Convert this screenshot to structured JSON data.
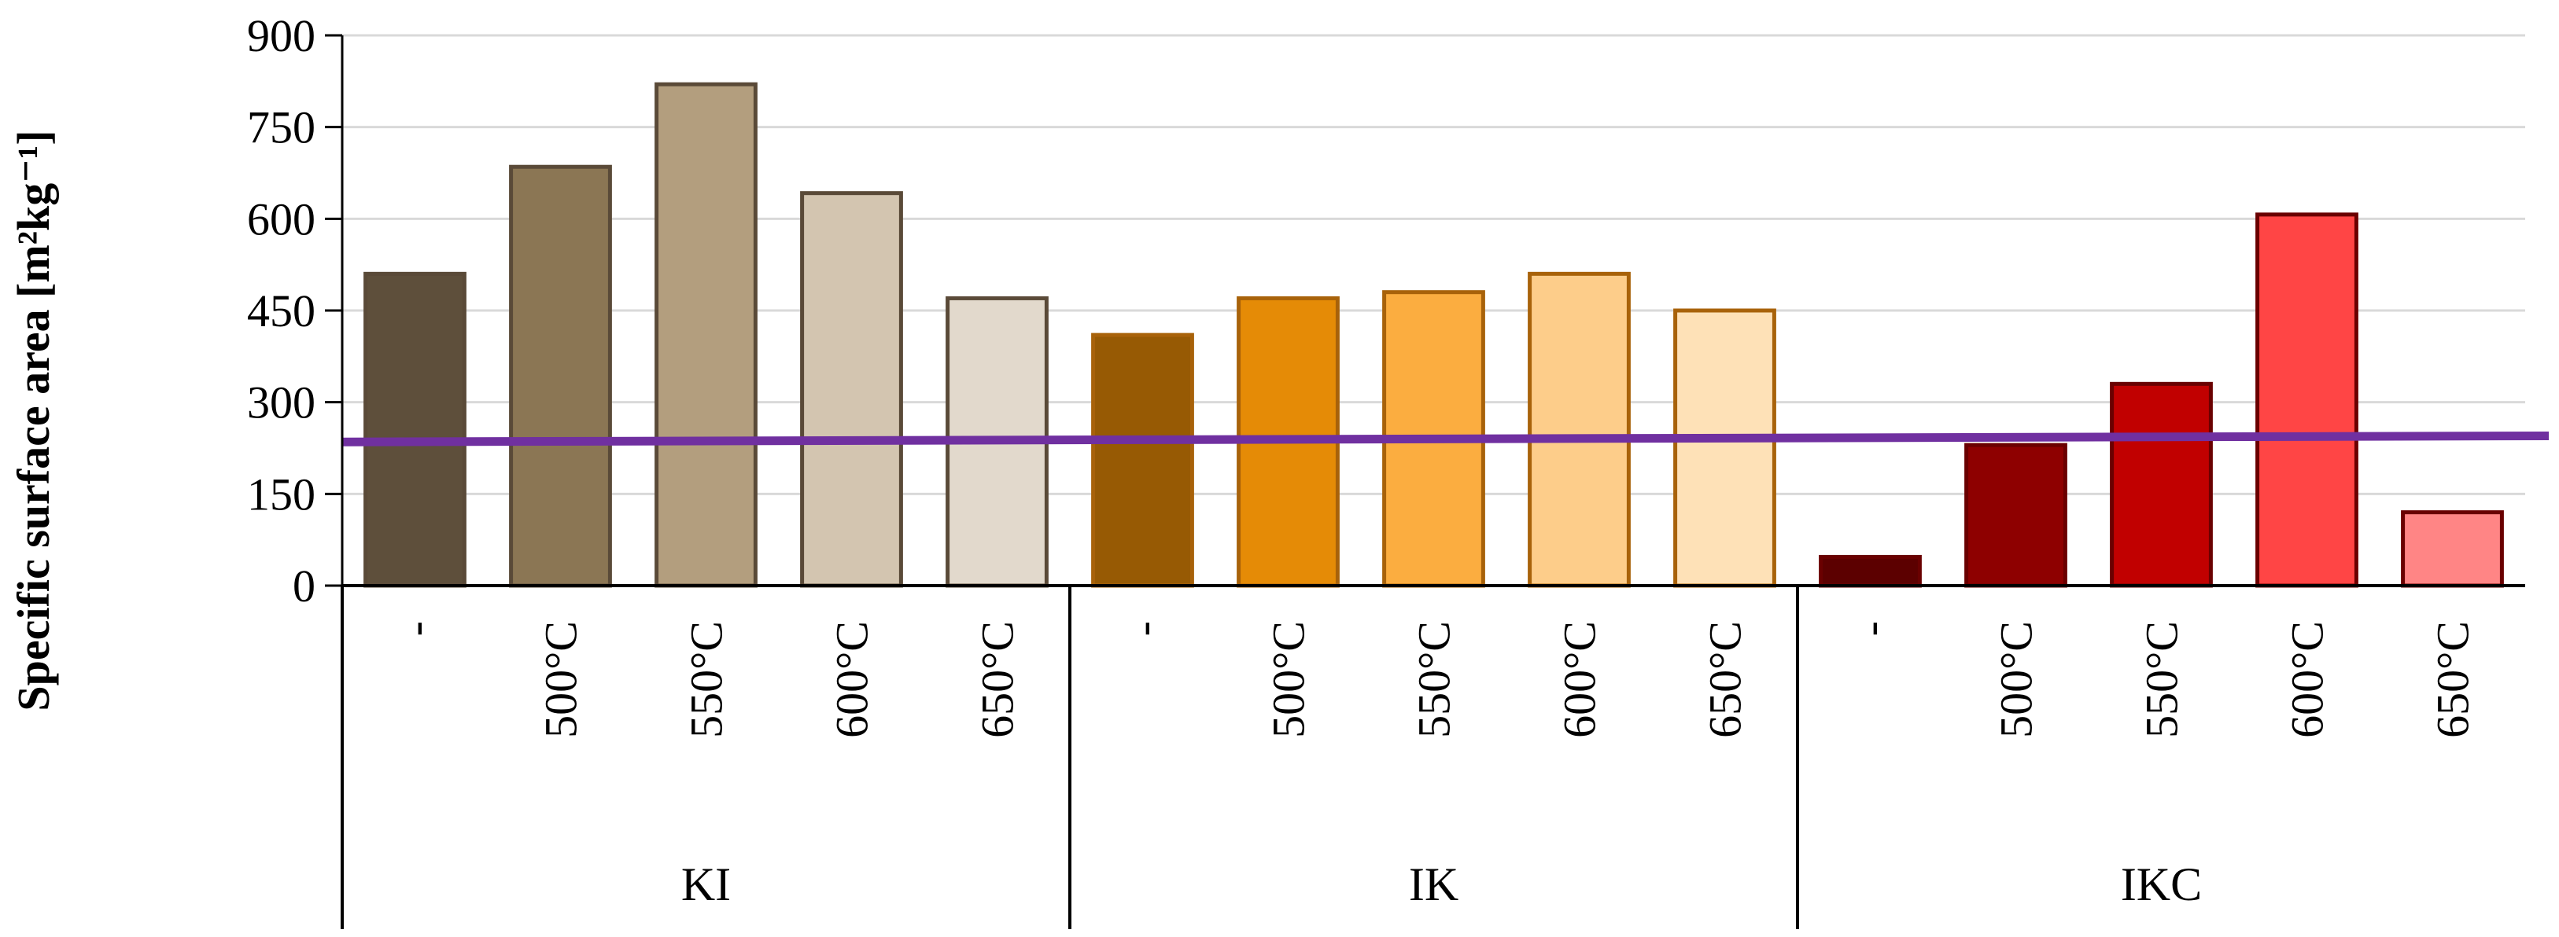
{
  "chart_data": {
    "type": "bar",
    "ylabel": "Specific surface area [m²kg⁻¹]",
    "ylim": [
      0,
      900
    ],
    "yticks": [
      0,
      150,
      300,
      450,
      600,
      750,
      900
    ],
    "grid": true,
    "groups": [
      {
        "name": "KI",
        "categories": [
          "-",
          "500°C",
          "550°C",
          "600°C",
          "650°C"
        ],
        "values": [
          510,
          685,
          820,
          642,
          470
        ],
        "colors": [
          "#5e4f3b",
          "#8b7654",
          "#b39e7e",
          "#d3c5b0",
          "#e2d9cc"
        ],
        "edge": "#5a4a38"
      },
      {
        "name": "IK",
        "categories": [
          "-",
          "500°C",
          "550°C",
          "600°C",
          "650°C"
        ],
        "values": [
          410,
          470,
          480,
          510,
          450
        ],
        "colors": [
          "#975a04",
          "#e58b06",
          "#fbad40",
          "#fdcd8a",
          "#fee1b7"
        ],
        "edge": "#a8620a"
      },
      {
        "name": "IKC",
        "categories": [
          "-",
          "500°C",
          "550°C",
          "600°C",
          "650°C"
        ],
        "values": [
          47,
          230,
          330,
          607,
          120
        ],
        "colors": [
          "#5c0000",
          "#8e0000",
          "#c10000",
          "#ff4545",
          "#ff8585"
        ],
        "edge": "#6a0000"
      }
    ],
    "reference_line": {
      "start": 235,
      "end": 245,
      "color": "#7030a0"
    }
  }
}
